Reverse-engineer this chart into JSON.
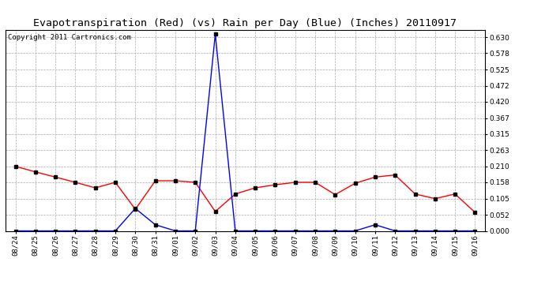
{
  "title": "Evapotranspiration (Red) (vs) Rain per Day (Blue) (Inches) 20110917",
  "copyright": "Copyright 2011 Cartronics.com",
  "labels": [
    "08/24",
    "08/25",
    "08/26",
    "08/27",
    "08/28",
    "08/29",
    "08/30",
    "08/31",
    "09/01",
    "09/02",
    "09/03",
    "09/04",
    "09/05",
    "09/06",
    "09/07",
    "09/08",
    "09/09",
    "09/10",
    "09/11",
    "09/12",
    "09/13",
    "09/14",
    "09/15",
    "09/16"
  ],
  "red_values": [
    0.21,
    0.192,
    0.175,
    0.158,
    0.14,
    0.158,
    0.07,
    0.163,
    0.163,
    0.158,
    0.063,
    0.12,
    0.14,
    0.15,
    0.158,
    0.158,
    0.118,
    0.155,
    0.175,
    0.182,
    0.12,
    0.105,
    0.12,
    0.06
  ],
  "blue_values": [
    0.0,
    0.0,
    0.0,
    0.0,
    0.0,
    0.0,
    0.073,
    0.02,
    0.0,
    0.0,
    0.64,
    0.0,
    0.0,
    0.0,
    0.0,
    0.0,
    0.0,
    0.0,
    0.02,
    0.0,
    0.0,
    0.0,
    0.0,
    0.0
  ],
  "ylim": [
    0.0,
    0.655
  ],
  "yticks": [
    0.0,
    0.052,
    0.105,
    0.158,
    0.21,
    0.263,
    0.315,
    0.367,
    0.42,
    0.472,
    0.525,
    0.578,
    0.63
  ],
  "red_color": "red",
  "blue_color": "blue",
  "bg_color": "#FFFFFF",
  "grid_color": "#AAAAAA",
  "title_fontsize": 9.5,
  "copyright_fontsize": 6.5,
  "tick_fontsize": 6.5
}
